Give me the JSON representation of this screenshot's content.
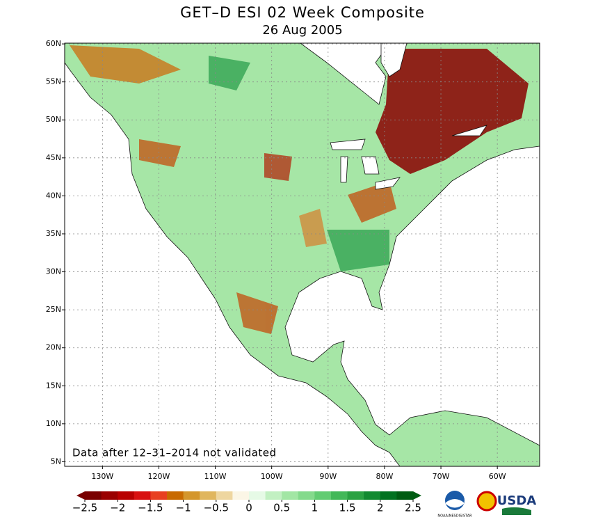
{
  "title": "GET–D ESI 02 Week Composite",
  "subtitle": "26 Aug 2005",
  "map": {
    "xlim": [
      -136.7,
      -52.5
    ],
    "ylim": [
      4.4,
      60.1
    ],
    "grid": true,
    "xticks": [
      {
        "value": -130,
        "label": "130W"
      },
      {
        "value": -120,
        "label": "120W"
      },
      {
        "value": -110,
        "label": "110W"
      },
      {
        "value": -100,
        "label": "100W"
      },
      {
        "value": -90,
        "label": "90W"
      },
      {
        "value": -80,
        "label": "80W"
      },
      {
        "value": -70,
        "label": "70W"
      },
      {
        "value": -60,
        "label": "60W"
      }
    ],
    "yticks": [
      {
        "value": 5,
        "label": "5N"
      },
      {
        "value": 10,
        "label": "10N"
      },
      {
        "value": 15,
        "label": "15N"
      },
      {
        "value": 20,
        "label": "20N"
      },
      {
        "value": 25,
        "label": "25N"
      },
      {
        "value": 30,
        "label": "30N"
      },
      {
        "value": 35,
        "label": "35N"
      },
      {
        "value": 40,
        "label": "40N"
      },
      {
        "value": 45,
        "label": "45N"
      },
      {
        "value": 50,
        "label": "50N"
      },
      {
        "value": 55,
        "label": "55N"
      },
      {
        "value": 60,
        "label": "60N"
      }
    ],
    "note": "Data after 12–31–2014 not validated"
  },
  "colorbar": {
    "lim": [
      -2.5,
      2.5
    ],
    "colors": [
      "#7a0000",
      "#9a0000",
      "#b80000",
      "#d81010",
      "#e84020",
      "#c86a00",
      "#d4962c",
      "#e0b65e",
      "#eed6a0",
      "#fbf6e6",
      "#e6fae6",
      "#c2f0c2",
      "#a2e6a4",
      "#84da8c",
      "#62cc72",
      "#42b858",
      "#2aa242",
      "#128a30",
      "#027220",
      "#005c12"
    ],
    "ticks": [
      {
        "value": -2.5,
        "label": "−2.5"
      },
      {
        "value": -2,
        "label": "−2"
      },
      {
        "value": -1.5,
        "label": "−1.5"
      },
      {
        "value": -1,
        "label": "−1"
      },
      {
        "value": -0.5,
        "label": "−0.5"
      },
      0,
      0.5,
      1,
      1.5,
      2,
      2.5
    ]
  },
  "logos": {
    "noaa": "NOAA/NESDIS/STAR",
    "usda": "USDA"
  }
}
